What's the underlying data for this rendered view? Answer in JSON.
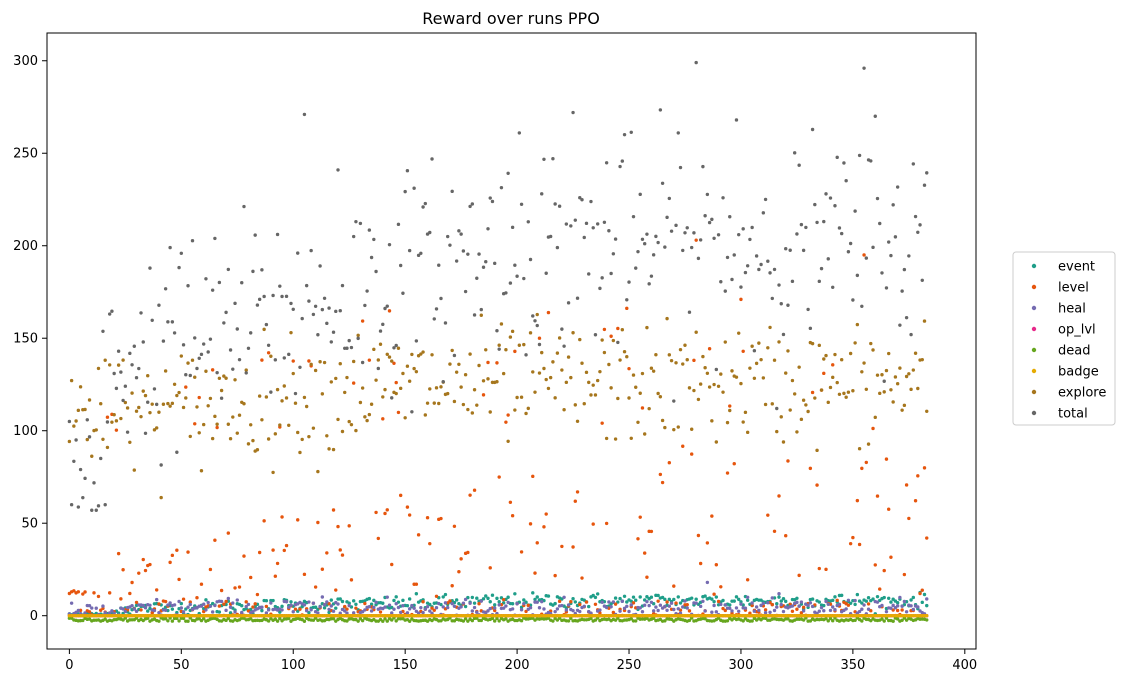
{
  "chart_data": {
    "type": "scatter",
    "title": "Reward over runs PPO",
    "xlabel": "",
    "ylabel": "",
    "xlim": [
      -10,
      405
    ],
    "ylim": [
      -18,
      315
    ],
    "xticks": [
      0,
      50,
      100,
      150,
      200,
      250,
      300,
      350,
      400
    ],
    "yticks": [
      0,
      50,
      100,
      150,
      200,
      250,
      300
    ],
    "grid": false,
    "legend_position": "center-right",
    "n_runs": 384,
    "series": [
      {
        "name": "event",
        "color": "#1f9e89",
        "approx_range": [
          0,
          10
        ]
      },
      {
        "name": "level",
        "color": "#e6550d",
        "approx_range": [
          0,
          205
        ]
      },
      {
        "name": "heal",
        "color": "#756bb1",
        "approx_range": [
          0,
          18
        ]
      },
      {
        "name": "op_lvl",
        "color": "#e7298a",
        "approx_range": [
          0,
          0
        ]
      },
      {
        "name": "dead",
        "color": "#66a61e",
        "approx_range": [
          -3,
          -1
        ]
      },
      {
        "name": "badge",
        "color": "#e6ab02",
        "approx_range": [
          0,
          0
        ]
      },
      {
        "name": "explore",
        "color": "#a6761d",
        "approx_range": [
          76,
          195
        ]
      },
      {
        "name": "total",
        "color": "#666666",
        "approx_range": [
          56,
          299
        ]
      }
    ],
    "highlights": {
      "total": [
        [
          0,
          105
        ],
        [
          1,
          60
        ],
        [
          3,
          95
        ],
        [
          5,
          79
        ],
        [
          10,
          57
        ],
        [
          12,
          57
        ],
        [
          14,
          85
        ],
        [
          16,
          60
        ],
        [
          45,
          199
        ],
        [
          105,
          271
        ],
        [
          120,
          241
        ],
        [
          201,
          261
        ],
        [
          225,
          272
        ],
        [
          272,
          261
        ],
        [
          280,
          299
        ],
        [
          298,
          268
        ],
        [
          355,
          296
        ],
        [
          360,
          270
        ],
        [
          366,
          202
        ],
        [
          384,
          165
        ]
      ],
      "level": [
        [
          0,
          12
        ],
        [
          210,
          150
        ],
        [
          280,
          203
        ],
        [
          300,
          171
        ],
        [
          355,
          195
        ],
        [
          384,
          52
        ]
      ],
      "heal": [
        [
          285,
          18
        ]
      ]
    }
  }
}
